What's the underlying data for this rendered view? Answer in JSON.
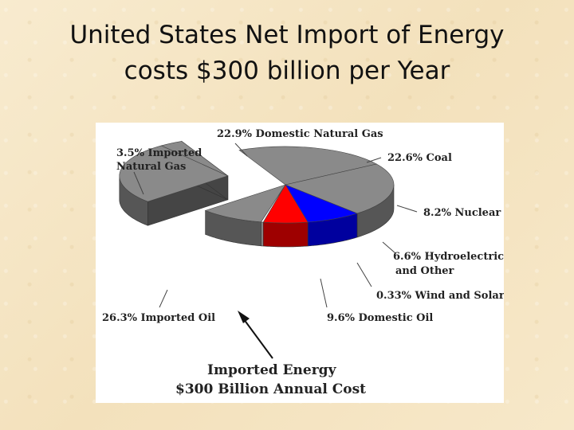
{
  "slide": {
    "title_line1": "United States Net Import of Energy",
    "title_line2": "costs $300 billion per Year"
  },
  "chart_data": {
    "type": "pie",
    "style": "3d-exploded",
    "slices": [
      {
        "label": "22.9% Domestic Natural Gas",
        "value": 22.9,
        "color": "#8a8a8a"
      },
      {
        "label": "22.6% Coal",
        "value": 22.6,
        "color": "#8a8a8a"
      },
      {
        "label": "8.2% Nuclear",
        "value": 8.2,
        "color": "#0000ff"
      },
      {
        "label": "6.6% Hydroelectric",
        "label2": "and Other",
        "value": 6.6,
        "color": "#ff0000"
      },
      {
        "label": "0.33% Wind and Solar",
        "value": 0.33,
        "color": "#ffffff"
      },
      {
        "label": "9.6% Domestic Oil",
        "value": 9.6,
        "color": "#8a8a8a"
      },
      {
        "label": "26.3% Imported Oil",
        "value": 26.3,
        "color": "#8a8a8a",
        "exploded": true
      },
      {
        "label": "3.5% Imported",
        "label2": "Natural Gas",
        "value": 3.5,
        "color": "#8a8a8a",
        "exploded": true
      }
    ],
    "annotation": {
      "line1": "Imported Energy",
      "line2": "$300 Billion Annual Cost"
    }
  }
}
